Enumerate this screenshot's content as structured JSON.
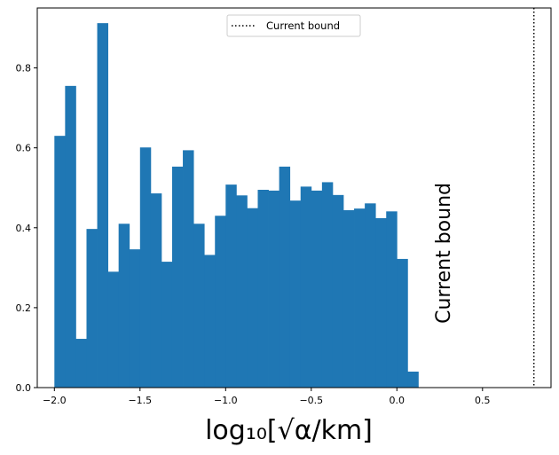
{
  "chart_data": {
    "type": "histogram",
    "xlabel": "log₁₀[√α/km]",
    "xlim": [
      -2.1,
      0.9
    ],
    "ylim": [
      0,
      0.95
    ],
    "xticks": [
      -2.0,
      -1.5,
      -1.0,
      -0.5,
      0.0,
      0.5
    ],
    "xtick_labels": [
      "−2.0",
      "−1.5",
      "−1.0",
      "−0.5",
      "0.0",
      "0.5"
    ],
    "yticks": [
      0.0,
      0.2,
      0.4,
      0.6,
      0.8
    ],
    "ytick_labels": [
      "0.0",
      "0.2",
      "0.4",
      "0.6",
      "0.8"
    ],
    "bar_color": "#1f77b4",
    "bin_width": 0.0625,
    "bins_start": [
      -2.0,
      -1.9375,
      -1.875,
      -1.8125,
      -1.75,
      -1.6875,
      -1.625,
      -1.5625,
      -1.5,
      -1.4375,
      -1.375,
      -1.3125,
      -1.25,
      -1.1875,
      -1.125,
      -1.0625,
      -1.0,
      -0.9375,
      -0.875,
      -0.8125,
      -0.75,
      -0.6875,
      -0.625,
      -0.5625,
      -0.5,
      -0.4375,
      -0.375,
      -0.3125,
      -0.25,
      -0.1875,
      -0.125,
      -0.0625,
      0.0,
      0.0625,
      0.125
    ],
    "values": [
      0.63,
      0.755,
      0.122,
      0.397,
      0.912,
      0.29,
      0.41,
      0.346,
      0.601,
      0.486,
      0.315,
      0.553,
      0.594,
      0.41,
      0.332,
      0.43,
      0.508,
      0.481,
      0.449,
      0.495,
      0.493,
      0.553,
      0.468,
      0.503,
      0.493,
      0.514,
      0.482,
      0.444,
      0.448,
      0.461,
      0.424,
      0.441,
      0.322,
      0.04
    ],
    "vline": {
      "x": 0.8,
      "style": "dotted",
      "color": "#000000"
    },
    "annotation": {
      "text": "Current bound",
      "x": 0.31,
      "y": 0.16,
      "rotation": 90
    },
    "legend": {
      "placement": "top-center",
      "entries": [
        {
          "label": "Current bound",
          "style": "dotted"
        }
      ]
    }
  }
}
